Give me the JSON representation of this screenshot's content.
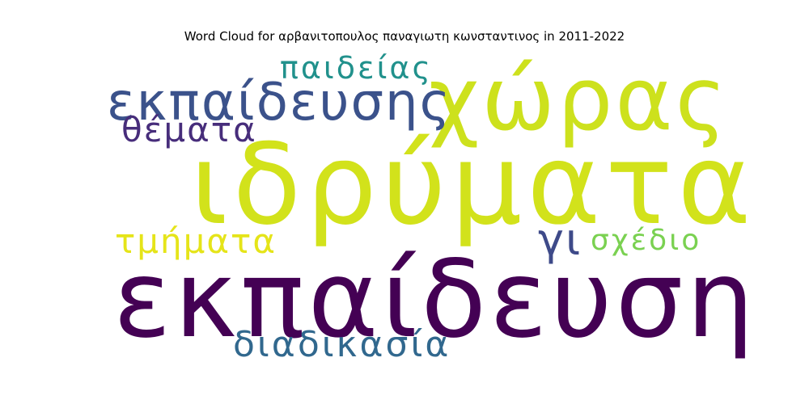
{
  "title": "Word Cloud for αρβανιτοπουλος παναγιωτη κωνσταντινος in 2011-2022",
  "chart_data": {
    "type": "wordcloud",
    "title": "Word Cloud for αρβανιτοπουλος παναγιωτη κωνσταντινος in 2011-2022",
    "words": [
      {
        "text": "ιδρύματα",
        "weight": 1.0,
        "color": "#d2e21b"
      },
      {
        "text": "εκπαίδευση",
        "weight": 0.95,
        "color": "#440154"
      },
      {
        "text": "χώρας",
        "weight": 0.8,
        "color": "#cde11d"
      },
      {
        "text": "εκπαίδευσης",
        "weight": 0.48,
        "color": "#3b528b"
      },
      {
        "text": "παιδείας",
        "weight": 0.3,
        "color": "#21918c"
      },
      {
        "text": "θέματα",
        "weight": 0.36,
        "color": "#472d7b"
      },
      {
        "text": "τμήματα",
        "weight": 0.36,
        "color": "#e5e419"
      },
      {
        "text": "γι",
        "weight": 0.4,
        "color": "#3e4a89"
      },
      {
        "text": "σχέδιο",
        "weight": 0.3,
        "color": "#7ad151"
      },
      {
        "text": "διαδικασία",
        "weight": 0.4,
        "color": "#31688e"
      }
    ]
  }
}
